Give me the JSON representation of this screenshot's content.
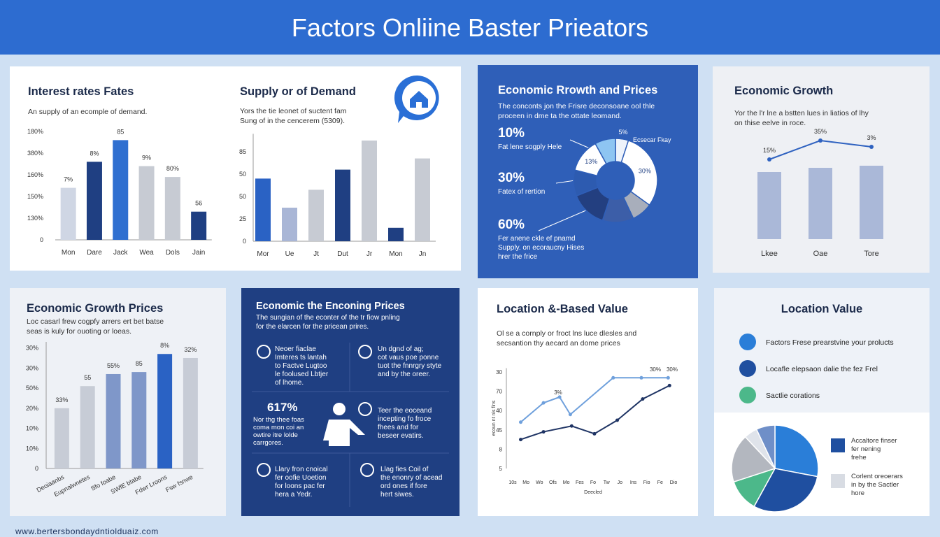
{
  "header": {
    "title": "Factors Onliine Baster Prieators"
  },
  "footer": {
    "url": "www.bertersbondaydntiolduaiz.com"
  },
  "chart_data": [
    {
      "type": "bar",
      "title": "Interest rates Fates",
      "subtitle": [
        "An supply of an ecomple of demand."
      ],
      "categories": [
        "Mon",
        "Dare",
        "Jack",
        "Wea",
        "Dols",
        "Jain"
      ],
      "values": [
        2.4,
        3.6,
        4.6,
        3.4,
        2.9,
        1.3
      ],
      "colors": [
        "#cfd6e4",
        "#1f3f82",
        "#2f6fd0",
        "#c7cbd3",
        "#c7cbd3",
        "#1f3f82"
      ],
      "annotations": [
        "7%",
        "8%",
        "85",
        "9%",
        "80%",
        "56"
      ],
      "ylim": [
        0,
        5
      ],
      "yticks": [
        0,
        {
          "value": 1,
          "label": "130%"
        },
        {
          "value": 2,
          "label": "150%"
        },
        {
          "value": 3,
          "label": "160%"
        },
        {
          "value": 4,
          "label": "380%"
        },
        {
          "value": 5,
          "label": "180%"
        }
      ]
    },
    {
      "type": "bar",
      "title": "Supply or of Demand",
      "subtitle": [
        "Yors the tie leonet of suctent fam",
        "Sung of in the cencerem (5309)."
      ],
      "categories": [
        "Mor",
        "Ue",
        "Jt",
        "Dut",
        "Jr",
        "Mon",
        "Jn"
      ],
      "values": [
        2.8,
        1.5,
        2.3,
        3.2,
        4.5,
        0.6,
        3.7
      ],
      "colors": [
        "#2a62c4",
        "#a9b6d6",
        "#c7cbd3",
        "#1f3f82",
        "#c7cbd3",
        "#1f3f82",
        "#c7cbd3"
      ],
      "ylim": [
        0,
        4.8
      ],
      "yticks": [
        0,
        {
          "value": 1,
          "label": "25"
        },
        {
          "value": 2,
          "label": "50"
        },
        {
          "value": 3,
          "label": "50"
        },
        {
          "value": 4,
          "label": "85"
        }
      ]
    },
    {
      "type": "donut",
      "title": "Economic Rrowth and Prices",
      "subtitle": [
        "The conconts jon the Frisre deconsoane ool thle",
        "proceen in dme ta the ottate leomand."
      ],
      "stats": [
        {
          "figure": "10%",
          "lines": [
            "Fat lene sogply Hele"
          ]
        },
        {
          "figure": "30%",
          "lines": [
            "Fatex of rertion"
          ]
        },
        {
          "figure": "60%",
          "lines": [
            "Fer anene ckle ef pnamd",
            "Supply. on ecoraucny Hises",
            "hrer the frice"
          ]
        }
      ],
      "values": [
        5,
        30,
        8,
        12,
        14,
        10,
        13,
        8
      ],
      "value_labels": [
        "5%",
        "30%",
        null,
        null,
        null,
        null,
        "13%",
        null
      ],
      "colors": [
        "#eef3fb",
        "#ffffff",
        "#a8aebb",
        "#3c5ea8",
        "#233f80",
        "#2d5bb0",
        "#ffffff",
        "#8ec5f2"
      ],
      "callout": "Ecsecar Fkay"
    },
    {
      "type": "combo",
      "title": "Economic Growth",
      "subtitle": [
        "Yor the l'r lne a bstten lues in liatios of lhy",
        "on thise eelve in roce."
      ],
      "categories": [
        "Lkee",
        "Oae",
        "Tore"
      ],
      "series": [
        {
          "type": "bar",
          "color": "#aab8d8",
          "values": [
            3.2,
            3.4,
            3.5
          ]
        },
        {
          "type": "line",
          "color": "#2f62c0",
          "values": [
            3.8,
            4.7,
            4.4
          ]
        }
      ],
      "annotations": [
        "15%",
        "35%",
        "3%"
      ],
      "ylim": [
        0,
        5
      ]
    },
    {
      "type": "bar",
      "title": "Economic Growth Prices",
      "subtitle": [
        "Loc casarl frew cogpfy arrers ert bet batse",
        "seas is kuly for ouoting or loeas."
      ],
      "categories": [
        "Deoiaanbs",
        "Eupnalwnetes",
        "Sfo foabe",
        "SWfE btabe",
        "Fdwr Lroons",
        "Fsw fsnwe"
      ],
      "values": [
        3.0,
        4.1,
        4.7,
        4.8,
        5.7,
        5.5
      ],
      "colors": [
        "#c7ccd6",
        "#c7ccd6",
        "#7f97c9",
        "#7f97c9",
        "#2a62c4",
        "#c7ccd6"
      ],
      "annotations": [
        "33%",
        "55",
        "55%",
        "85",
        "8%",
        "32%"
      ],
      "ylim": [
        0,
        6.3
      ],
      "yticks": [
        0,
        {
          "value": 1,
          "label": "10%"
        },
        {
          "value": 2,
          "label": "10%"
        },
        {
          "value": 3,
          "label": "20%"
        },
        {
          "value": 4,
          "label": "50%"
        },
        {
          "value": 5,
          "label": "30%"
        },
        {
          "value": 6,
          "label": "30%"
        }
      ]
    },
    {
      "type": "line",
      "title": "Location &-Based Value",
      "subtitle": [
        "Ol se a cornply or froct lns luce dlesles and",
        "secsantion thy aecard an dome prices"
      ],
      "xlabel": "Deecled",
      "ylabel": "ecoun nt nis fins",
      "xlim": [
        0,
        12
      ],
      "xticks": [
        {
          "value": 0,
          "label": "10s"
        },
        {
          "value": 1,
          "label": "Mo"
        },
        {
          "value": 2,
          "label": "Wo"
        },
        {
          "value": 3,
          "label": "Ofs"
        },
        {
          "value": 4,
          "label": "Mo"
        },
        {
          "value": 5,
          "label": "Fes"
        },
        {
          "value": 6,
          "label": "Fo"
        },
        {
          "value": 7,
          "label": "Tw"
        },
        {
          "value": 8,
          "label": "Jo"
        },
        {
          "value": 9,
          "label": "Ins"
        },
        {
          "value": 10,
          "label": "Fio"
        },
        {
          "value": 11,
          "label": "Fe"
        },
        {
          "value": 12,
          "label": "Dio"
        }
      ],
      "ylim": [
        0,
        5.2
      ],
      "yticks": [
        {
          "value": 0,
          "label": "5"
        },
        {
          "value": 1,
          "label": "8"
        },
        {
          "value": 2,
          "label": "45"
        },
        {
          "value": 3,
          "label": "40"
        },
        {
          "value": 4,
          "label": "70"
        },
        {
          "value": 5,
          "label": "30"
        }
      ],
      "series": [
        {
          "color": "#6fa0dc",
          "x": [
            0.6,
            2.3,
            3.5,
            4.3,
            7.5,
            9.6,
            11.6
          ],
          "values": [
            2.4,
            3.4,
            3.7,
            2.8,
            4.7,
            4.7,
            4.7
          ]
        },
        {
          "color": "#1f3464",
          "x": [
            0.6,
            2.3,
            4.4,
            6.1,
            7.8,
            9.7,
            11.7
          ],
          "values": [
            1.5,
            1.9,
            2.2,
            1.8,
            2.5,
            3.6,
            4.3
          ]
        }
      ],
      "annotations": [
        "3%",
        "30%",
        "30%"
      ]
    },
    {
      "type": "pie",
      "title": "Location Value",
      "legend": [
        {
          "name": "Factors Frese prearstvine your prolucts",
          "color": "#2a7ed8"
        },
        {
          "name": "Locafle elepsaon dalie the fez Frel",
          "color": "#1f4fa0"
        },
        {
          "name": "Sactlie corations",
          "color": "#4cb88a"
        }
      ],
      "values": [
        28,
        30,
        12,
        18,
        5,
        7
      ],
      "colors": [
        "#2a7ed8",
        "#1f4fa0",
        "#4cb88a",
        "#b3b7bf",
        "#dfe3ea",
        "#6f8fc8"
      ],
      "key": [
        {
          "color": "#1f4fa0",
          "lines": [
            "Accaltore finser",
            "fer nening",
            "frehe"
          ]
        },
        {
          "color": "#d8dce3",
          "lines": [
            "Corlent oreoerars",
            "in by the Sactler",
            "hore"
          ]
        }
      ]
    }
  ],
  "info": {
    "title": "Economic the Enconing Prices",
    "subtitle": [
      "The sungian of the econter of the tr fiow pnling",
      "for the elarcen for the pricean prires."
    ],
    "items": [
      [
        "Neoer fiaclae",
        "Imteres ts lantah",
        "to Factve Lugtoo",
        "le foolused Lbtjer",
        "of lhome."
      ],
      [
        "Un dgnd of ag;",
        "cot vaus poe ponne",
        "tuot the fnnrgry styte",
        "and by the oreer."
      ],
      [
        "Teer the eoceand",
        "incepting fo froce",
        "fhees and for",
        "beseer evatirs."
      ],
      [
        "Llary fron cnoical",
        "fer oofie Uoetion",
        "for loons pac fer",
        "hera a Yedr."
      ],
      [
        "Llag fies Coil of",
        "the enonry of acead",
        "ord ones if fore",
        "hert siwes."
      ]
    ],
    "figure": "617%",
    "figure_lines": [
      "Nor thg thee foas",
      "coma mon coi an",
      "owtire itre lolde",
      "carrgores."
    ]
  }
}
